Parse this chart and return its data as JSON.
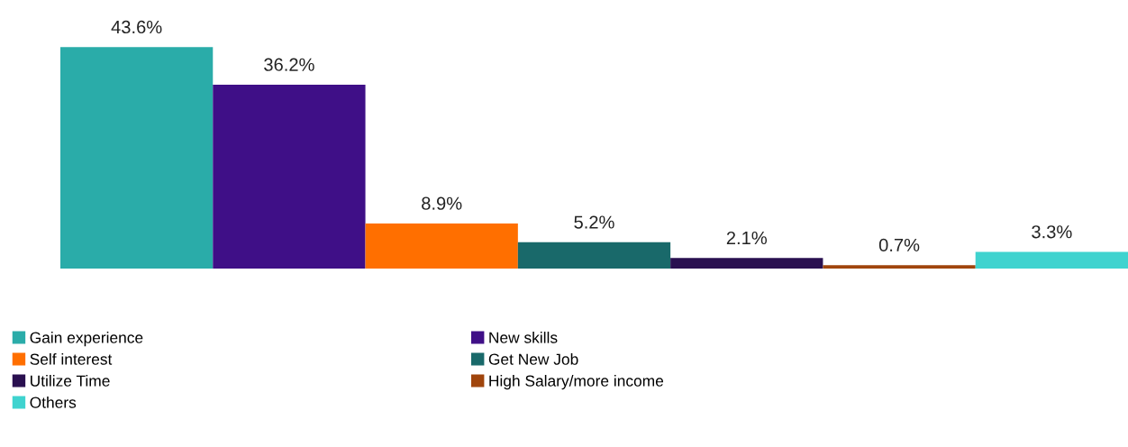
{
  "chart_data": {
    "type": "bar",
    "categories": [
      null
    ],
    "legend": "bottom",
    "grid": false,
    "series": [
      {
        "name": "Gain experience",
        "color": "#2aaca9",
        "values": [
          43.6
        ],
        "value_labels": [
          "43.6%"
        ]
      },
      {
        "name": "New skills",
        "color": "#3f0f87",
        "values": [
          36.2
        ],
        "value_labels": [
          "36.2%"
        ]
      },
      {
        "name": "Self interest",
        "color": "#ff6f00",
        "values": [
          8.9
        ],
        "value_labels": [
          "8.9%"
        ]
      },
      {
        "name": "Get New Job",
        "color": "#19696a",
        "values": [
          5.2
        ],
        "value_labels": [
          "5.2%"
        ]
      },
      {
        "name": "Utilize Time",
        "color": "#2a1050",
        "values": [
          2.1
        ],
        "value_labels": [
          "2.1%"
        ]
      },
      {
        "name": "High Salary/more income",
        "color": "#a0450c",
        "values": [
          0.7
        ],
        "value_labels": [
          "0.7%"
        ]
      },
      {
        "name": "Others",
        "color": "#3fd3cf",
        "values": [
          3.3
        ],
        "value_labels": [
          "3.3%"
        ]
      }
    ]
  }
}
